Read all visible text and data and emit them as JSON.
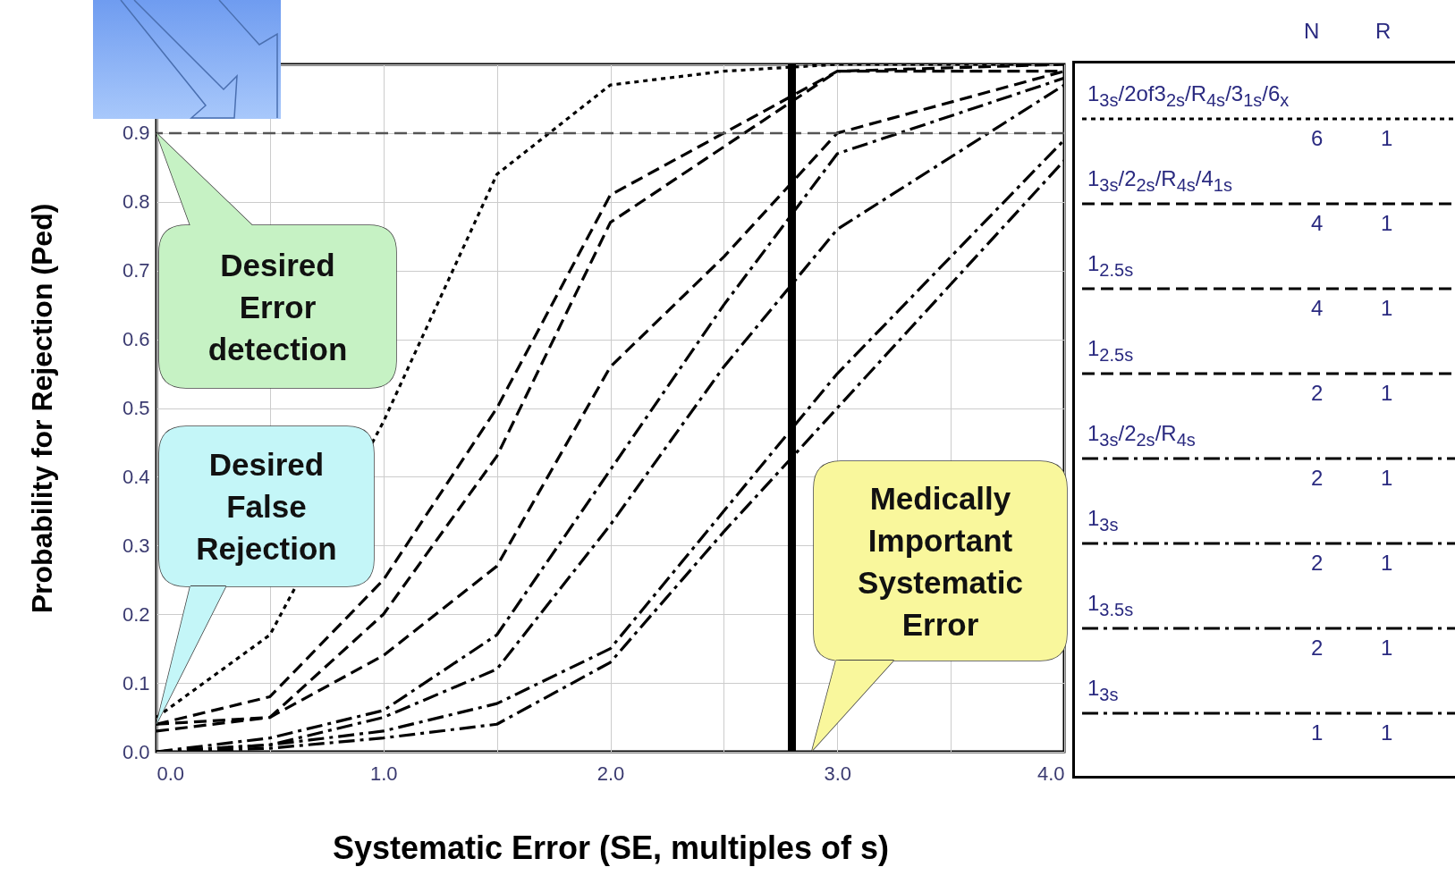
{
  "chart_data": {
    "type": "line",
    "xlabel": "Systematic Error (SE, multiples of s)",
    "ylabel": "Probability for Rejection (Ped)",
    "x": [
      0,
      0.5,
      1.0,
      1.5,
      2.0,
      2.5,
      3.0,
      4.0
    ],
    "series": [
      {
        "name": "1$_{3s}$/2of3$_{2s}$/R$_{4s}$/3$_{1s}$/6$_{x}$",
        "color": "#000000",
        "line_style": "dotted",
        "values": [
          0.05,
          0.17,
          0.48,
          0.84,
          0.97,
          0.99,
          1.0,
          1.0
        ]
      },
      {
        "name": "1$_{3s}$/2$_{2s}$/R$_{4s}$/4$_{1s}$",
        "color": "#000000",
        "line_style": "dashed",
        "values": [
          0.04,
          0.08,
          0.25,
          0.5,
          0.81,
          0.9,
          0.99,
          1.0
        ]
      },
      {
        "name": "1$_{2.5s}$",
        "color": "#000000",
        "line_style": "dashed",
        "values": [
          0.04,
          0.05,
          0.2,
          0.43,
          0.77,
          0.88,
          0.99,
          0.99
        ]
      },
      {
        "name": "1$_{2.5s}$",
        "color": "#000000",
        "line_style": "dashed",
        "values": [
          0.03,
          0.05,
          0.14,
          0.27,
          0.56,
          0.72,
          0.9,
          0.99
        ]
      },
      {
        "name": "1$_{3s}$/2$_{2s}$/R$_{4s}$",
        "color": "#000000",
        "line_style": "dashdot",
        "values": [
          0.0,
          0.02,
          0.06,
          0.17,
          0.41,
          0.65,
          0.87,
          0.98
        ]
      },
      {
        "name": "1$_{3s}$",
        "color": "#000000",
        "line_style": "dashdot",
        "values": [
          0.0,
          0.01,
          0.05,
          0.12,
          0.33,
          0.56,
          0.76,
          0.97
        ]
      },
      {
        "name": "1$_{3.5s}$",
        "color": "#000000",
        "line_style": "dashdot",
        "values": [
          0.0,
          0.01,
          0.03,
          0.07,
          0.15,
          0.35,
          0.55,
          0.89
        ]
      },
      {
        "name": "1$_{3s}$",
        "color": "#000000",
        "line_style": "dashdot",
        "values": [
          0.0,
          0.005,
          0.02,
          0.04,
          0.13,
          0.32,
          0.5,
          0.86
        ]
      }
    ],
    "xlim": [
      0,
      4
    ],
    "xticks": [
      {
        "value": 0,
        "label": "0.0"
      },
      {
        "value": 0.5,
        "label": null
      },
      {
        "value": 1,
        "label": "1.0"
      },
      {
        "value": 1.5,
        "label": null
      },
      {
        "value": 2,
        "label": "2.0"
      },
      {
        "value": 2.5,
        "label": null
      },
      {
        "value": 3,
        "label": "3.0"
      },
      {
        "value": 3.5,
        "label": null
      },
      {
        "value": 4,
        "label": "4.0"
      }
    ],
    "ylim": [
      0,
      1
    ],
    "yticks": [
      {
        "value": 0,
        "label": "0.0"
      },
      0.1,
      0.2,
      0.3,
      0.4,
      0.5,
      0.6,
      0.7,
      0.8,
      0.9,
      {
        "value": 1,
        "label": null
      }
    ],
    "grid": true,
    "legend": "right",
    "ref_lines": [
      {
        "axis": "y",
        "value": 0.9,
        "color": "#555555",
        "line_style": "dashed"
      },
      {
        "axis": "x",
        "value": 2.8,
        "color": "#000000",
        "line_style": "solid"
      }
    ],
    "annotations": [
      "Desired Error detection",
      "Desired False Rejection",
      "Medically Important Systematic Error",
      "N",
      "R",
      "6",
      "1",
      "4",
      "1",
      "4",
      "1",
      "2",
      "1",
      "2",
      "1",
      "2",
      "1",
      "2",
      "1",
      "1",
      "1"
    ]
  }
}
